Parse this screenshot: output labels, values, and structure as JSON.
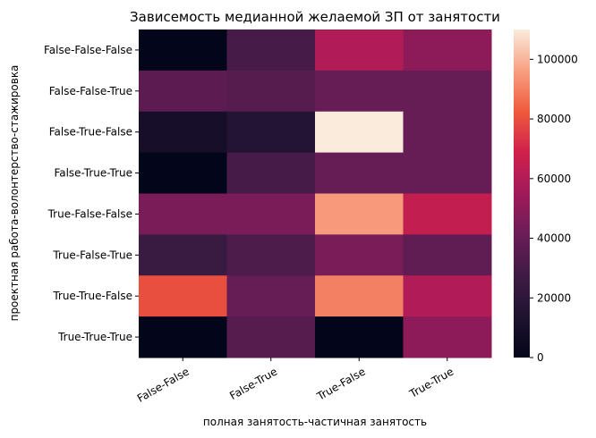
{
  "chart_data": {
    "type": "heatmap",
    "title": "Зависемость медианной желаемой ЗП от занятости",
    "xlabel": "полная занятость-частичная занятость",
    "ylabel": "проектная работа-волонтерство-стажировка",
    "x_categories": [
      "False-False",
      "False-True",
      "True-False",
      "True-True"
    ],
    "y_categories": [
      "False-False-False",
      "False-False-True",
      "False-True-False",
      "False-True-True",
      "True-False-False",
      "True-False-True",
      "True-True-False",
      "True-True-True"
    ],
    "values": [
      [
        0,
        30000,
        60000,
        50000
      ],
      [
        37000,
        35000,
        40000,
        40000
      ],
      [
        10000,
        15000,
        110000,
        40000
      ],
      [
        0,
        30000,
        40000,
        40000
      ],
      [
        45000,
        45000,
        95000,
        65000
      ],
      [
        25000,
        32000,
        45000,
        38000
      ],
      [
        80000,
        40000,
        90000,
        60000
      ],
      [
        0,
        35000,
        0,
        50000
      ]
    ],
    "colorbar": {
      "min": 0,
      "max": 110000,
      "ticks": [
        0,
        20000,
        40000,
        60000,
        80000,
        100000
      ],
      "tick_labels": [
        "0",
        "20000",
        "40000",
        "60000",
        "80000",
        "100000"
      ]
    },
    "colormap": "rocket",
    "grid": false
  }
}
